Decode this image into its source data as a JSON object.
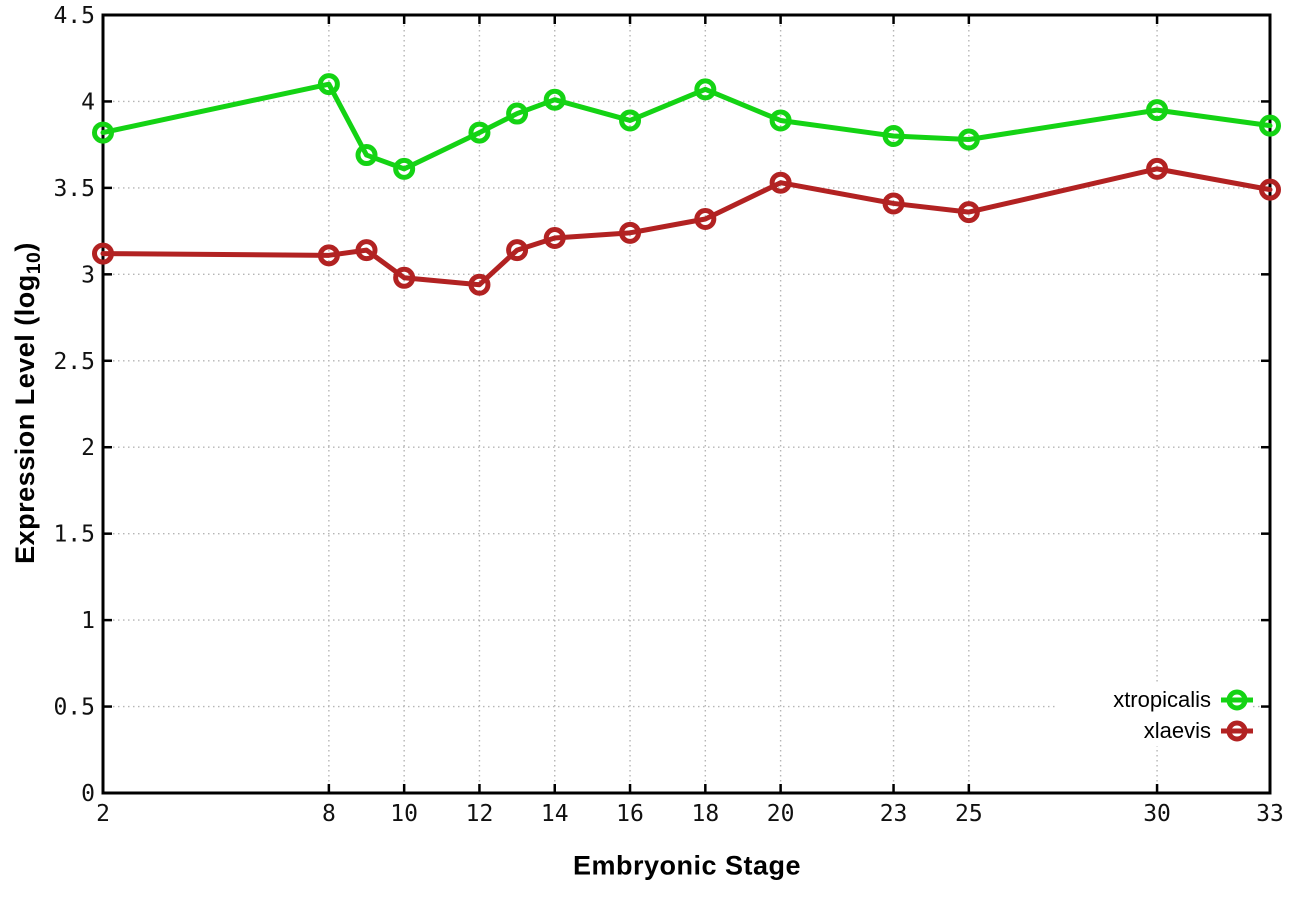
{
  "chart_data": {
    "type": "line",
    "title": "",
    "xlabel": "Embryonic Stage",
    "ylabel": "Expression Level (log10)",
    "ylabel_parts": {
      "prefix": "Expression Level (log",
      "sub": "10",
      "suffix": ")"
    },
    "x": [
      2,
      8,
      9,
      10,
      12,
      13,
      14,
      16,
      18,
      20,
      23,
      25,
      30,
      33
    ],
    "xlim": [
      2,
      33
    ],
    "ylim": [
      0,
      4.5
    ],
    "xticks": [
      2,
      8,
      10,
      12,
      14,
      16,
      18,
      20,
      23,
      25,
      30,
      33
    ],
    "yticks": [
      0,
      0.5,
      1,
      1.5,
      2,
      2.5,
      3,
      3.5,
      4,
      4.5
    ],
    "grid": true,
    "legend_position": "inside-bottom-right",
    "series": [
      {
        "name": "xtropicalis",
        "color": "#14d314",
        "values": [
          3.82,
          4.1,
          3.69,
          3.61,
          3.82,
          3.93,
          4.01,
          3.89,
          4.07,
          3.89,
          3.8,
          3.78,
          3.95,
          3.86
        ]
      },
      {
        "name": "xlaevis",
        "color": "#b22222",
        "values": [
          3.12,
          3.11,
          3.14,
          2.98,
          2.94,
          3.14,
          3.21,
          3.24,
          3.32,
          3.53,
          3.41,
          3.36,
          3.61,
          3.49
        ]
      }
    ]
  },
  "colors": {
    "background": "#ffffff",
    "border": "#000000",
    "grid": "#b5b5b5",
    "tick_text": "#111111"
  }
}
